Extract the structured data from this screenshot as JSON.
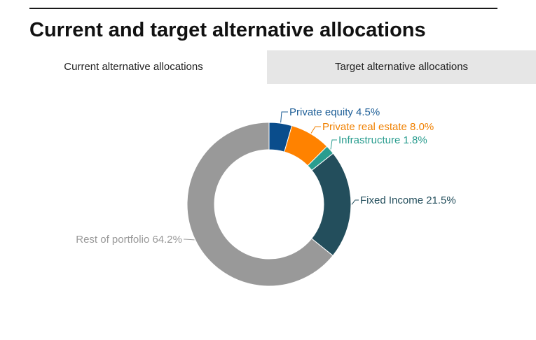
{
  "page": {
    "title": "Current and target alternative allocations"
  },
  "tabs": [
    {
      "label": "Current alternative allocations",
      "active": true
    },
    {
      "label": "Target alternative allocations",
      "active": false
    }
  ],
  "chart_data": {
    "type": "pie",
    "variant": "donut",
    "title": "",
    "slices": [
      {
        "name": "Private equity",
        "label": "Private equity 4.5%",
        "value": 4.5,
        "color": "#0a4d8c"
      },
      {
        "name": "Private real estate",
        "label": "Private real estate 8.0%",
        "value": 8.0,
        "color": "#ff8200"
      },
      {
        "name": "Infrastructure",
        "label": "Infrastructure 1.8%",
        "value": 1.8,
        "color": "#2a9d8f"
      },
      {
        "name": "Fixed Income",
        "label": "Fixed Income 21.5%",
        "value": 21.5,
        "color": "#234e5c"
      },
      {
        "name": "Rest of portfolio",
        "label": "Rest of portfolio 64.2%",
        "value": 64.2,
        "color": "#999999"
      }
    ],
    "label_colors": [
      "#1c5d96",
      "#f08000",
      "#2a9d8f",
      "#234e5c",
      "#999999"
    ],
    "legend": "none"
  }
}
